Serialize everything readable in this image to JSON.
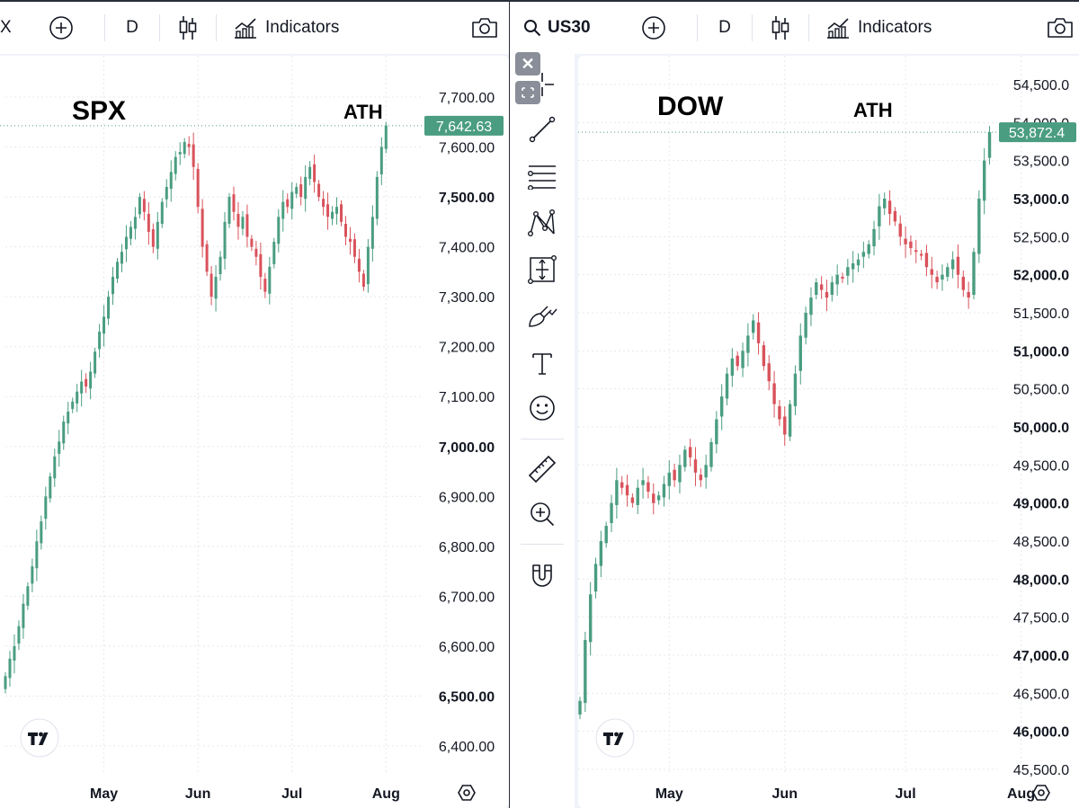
{
  "left_pane": {
    "toolbar": {
      "symbol_fragment": "X",
      "interval": "D",
      "indicators_label": "Indicators"
    },
    "annotations": {
      "title": "SPX",
      "ath": "ATH"
    },
    "price_label": "7,642.63",
    "x_labels": [
      "May",
      "Jun",
      "Jul",
      "Aug"
    ]
  },
  "right_pane": {
    "toolbar": {
      "symbol": "US30",
      "interval": "D",
      "indicators_label": "Indicators"
    },
    "annotations": {
      "title": "DOW",
      "ath": "ATH"
    },
    "price_label": "53,872.4",
    "x_labels": [
      "May",
      "Jun",
      "Jul",
      "Aug"
    ]
  },
  "drawing_tools": [
    "crosshair",
    "trend-line",
    "fib-retracement",
    "pattern",
    "forecast",
    "brush",
    "text",
    "emoji",
    "ruler",
    "zoom-in",
    "magnet"
  ],
  "colors": {
    "up": "#4a9d80",
    "down": "#d9525b",
    "label_bg": "#4a9d80",
    "text": "#131722",
    "grid": "#e6e8ee"
  },
  "chart_data": [
    {
      "type": "candlestick",
      "title": "SPX",
      "annotation": "ATH",
      "last_price": 7642.63,
      "ylim": [
        6350,
        7750
      ],
      "y_ticks": [
        "6,400.00",
        "6,500.00",
        "6,600.00",
        "6,700.00",
        "6,800.00",
        "6,900.00",
        "7,000.00",
        "7,100.00",
        "7,200.00",
        "7,300.00",
        "7,400.00",
        "7,500.00",
        "7,600.00",
        "7,700.00"
      ],
      "y_ticks_bold": [
        "6,500.00",
        "7,000.00",
        "7,500.00"
      ],
      "x_ticks": [
        "May",
        "Jun",
        "Jul",
        "Aug"
      ],
      "x_tick_bars": [
        22,
        43,
        64,
        85
      ],
      "close": [
        6540,
        6575,
        6600,
        6640,
        6685,
        6720,
        6760,
        6810,
        6850,
        6900,
        6940,
        6980,
        7010,
        7050,
        7070,
        7090,
        7110,
        7130,
        7120,
        7150,
        7190,
        7230,
        7260,
        7300,
        7340,
        7370,
        7390,
        7420,
        7440,
        7460,
        7500,
        7470,
        7430,
        7400,
        7450,
        7490,
        7520,
        7550,
        7580,
        7590,
        7610,
        7600,
        7560,
        7480,
        7400,
        7350,
        7300,
        7340,
        7380,
        7450,
        7500,
        7470,
        7440,
        7460,
        7420,
        7400,
        7380,
        7340,
        7310,
        7360,
        7410,
        7460,
        7490,
        7480,
        7510,
        7520,
        7500,
        7540,
        7560,
        7530,
        7500,
        7480,
        7460,
        7470,
        7480,
        7450,
        7420,
        7410,
        7380,
        7350,
        7320,
        7400,
        7460,
        7540,
        7600,
        7642.63
      ]
    },
    {
      "type": "candlestick",
      "title": "DOW",
      "annotation": "ATH",
      "last_price": 53872.4,
      "ylim": [
        45400,
        54900
      ],
      "y_ticks": [
        "45,500.0",
        "46,000.0",
        "46,500.0",
        "47,000.0",
        "47,500.0",
        "48,000.0",
        "48,500.0",
        "49,000.0",
        "49,500.0",
        "50,000.0",
        "50,500.0",
        "51,000.0",
        "51,500.0",
        "52,000.0",
        "52,500.0",
        "53,000.0",
        "53,500.0",
        "54,000.0",
        "54,500.0"
      ],
      "y_ticks_bold": [
        "46,000.0",
        "47,000.0",
        "48,000.0",
        "49,000.0",
        "50,000.0",
        "51,000.0",
        "52,000.0",
        "53,000.0"
      ],
      "x_ticks": [
        "May",
        "Jun",
        "Jul",
        "Aug"
      ],
      "x_tick_bars": [
        17,
        39,
        62,
        84
      ],
      "close": [
        46400,
        47200,
        47800,
        48200,
        48500,
        48700,
        49000,
        49300,
        49200,
        49100,
        49000,
        49200,
        49300,
        49150,
        49000,
        49100,
        49250,
        49400,
        49300,
        49500,
        49700,
        49600,
        49400,
        49300,
        49500,
        49800,
        50100,
        50400,
        50700,
        50900,
        50800,
        51000,
        51200,
        51400,
        51100,
        50800,
        50600,
        50300,
        50100,
        49900,
        50300,
        50700,
        51200,
        51500,
        51700,
        51900,
        51800,
        51700,
        51900,
        52000,
        51950,
        52100,
        52150,
        52200,
        52300,
        52400,
        52600,
        52900,
        53000,
        52800,
        52700,
        52500,
        52400,
        52350,
        52300,
        52250,
        52100,
        52000,
        51900,
        52000,
        52100,
        52200,
        52000,
        51800,
        51700,
        52300,
        53000,
        53500,
        53872.4
      ]
    }
  ]
}
